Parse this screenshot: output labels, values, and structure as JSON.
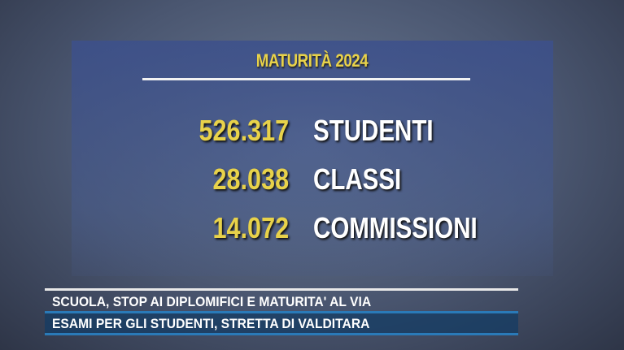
{
  "graphic": {
    "title": "MATURITÀ 2024",
    "stats": [
      {
        "value": "526.317",
        "label": "STUDENTI"
      },
      {
        "value": "28.038",
        "label": "CLASSI"
      },
      {
        "value": "14.072",
        "label": "COMMISSIONI"
      }
    ]
  },
  "ticker": {
    "line1": "SCUOLA, STOP AI DIPLOMIFICI E MATURITA' AL VIA",
    "line2": "ESAMI PER GLI STUDENTI, STRETTA DI VALDITARA"
  },
  "colors": {
    "accent": "#e8d24a",
    "panel": "#3c508c",
    "ticker_bar": "#2a7ab8"
  }
}
